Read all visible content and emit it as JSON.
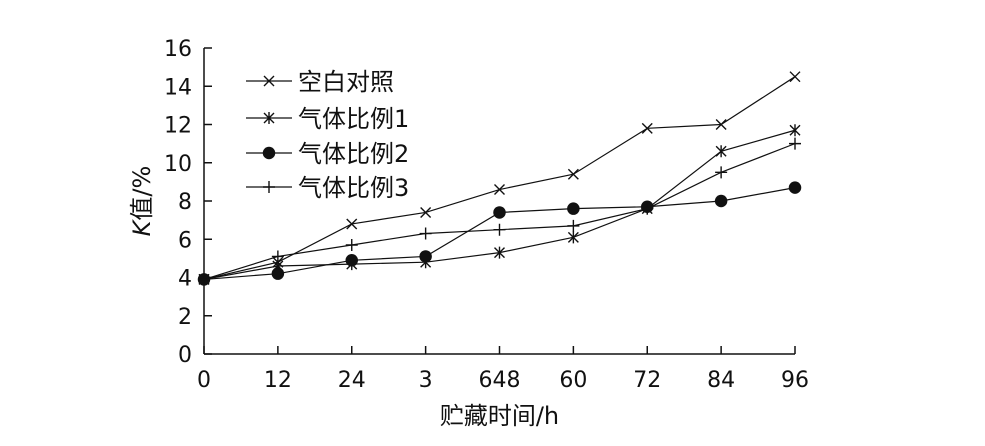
{
  "chart_data": {
    "type": "line",
    "xlabel": "贮藏时间/h",
    "ylabel_italic": "K",
    "ylabel_rest": "值/%",
    "ylim": [
      0,
      16
    ],
    "yticks": [
      0,
      2,
      4,
      6,
      8,
      10,
      12,
      14,
      16
    ],
    "categories": [
      "0",
      "12",
      "24",
      "3",
      "648",
      "60",
      "72",
      "84",
      "96"
    ],
    "grid": false,
    "legend_position": "top-left",
    "series": [
      {
        "name": "空白对照",
        "marker": "x",
        "values": [
          3.9,
          4.8,
          6.8,
          7.4,
          8.6,
          9.4,
          11.8,
          12.0,
          14.5
        ]
      },
      {
        "name": "气体比例1",
        "marker": "asterisk",
        "values": [
          3.9,
          4.6,
          4.7,
          4.8,
          5.3,
          6.1,
          7.6,
          10.6,
          11.7
        ]
      },
      {
        "name": "气体比例2",
        "marker": "circle",
        "values": [
          3.9,
          4.2,
          4.9,
          5.1,
          7.4,
          7.6,
          7.7,
          8.0,
          8.7
        ]
      },
      {
        "name": "气体比例3",
        "marker": "plus",
        "values": [
          3.9,
          5.1,
          5.7,
          6.3,
          6.5,
          6.7,
          7.6,
          9.5,
          11.0
        ]
      }
    ]
  }
}
